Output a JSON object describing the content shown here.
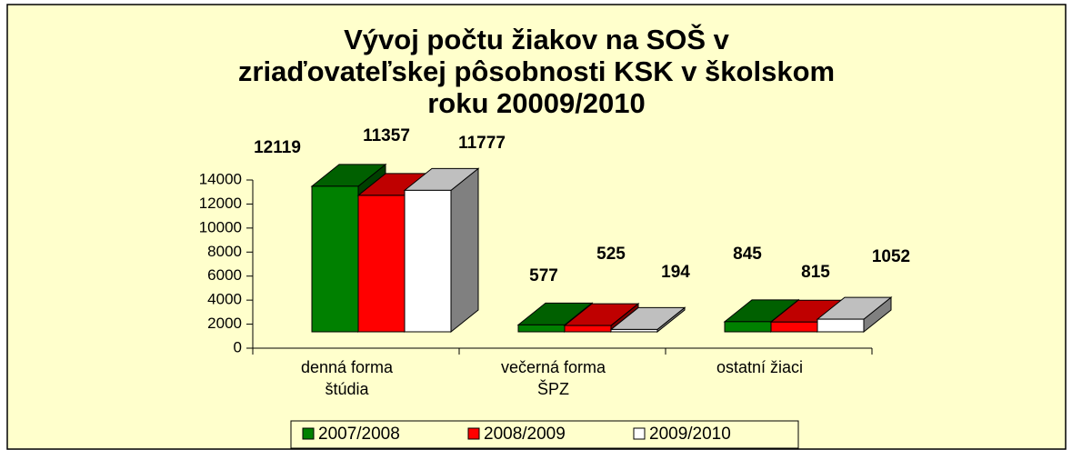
{
  "chart_data": {
    "type": "bar3d",
    "title": [
      "Vývoj počtu žiakov na SOŠ  v",
      "zriaďovateľskej pôsobnosti KSK v školskom",
      "roku 20009/2010"
    ],
    "categories": [
      [
        "denná forma",
        "štúdia"
      ],
      [
        "večerná forma",
        "ŠPZ"
      ],
      [
        "ostatní žiaci"
      ]
    ],
    "series": [
      {
        "name": "2007/2008",
        "color": "#008000",
        "values": [
          12119,
          577,
          845
        ]
      },
      {
        "name": "2008/2009",
        "color": "#ff0000",
        "values": [
          11357,
          525,
          815
        ]
      },
      {
        "name": "2009/2010",
        "color": "#ffffff",
        "values": [
          11777,
          194,
          1052
        ]
      }
    ],
    "ylim": [
      0,
      14000
    ],
    "yticks": [
      0,
      2000,
      4000,
      6000,
      8000,
      10000,
      12000,
      14000
    ],
    "legend": "bottom"
  }
}
